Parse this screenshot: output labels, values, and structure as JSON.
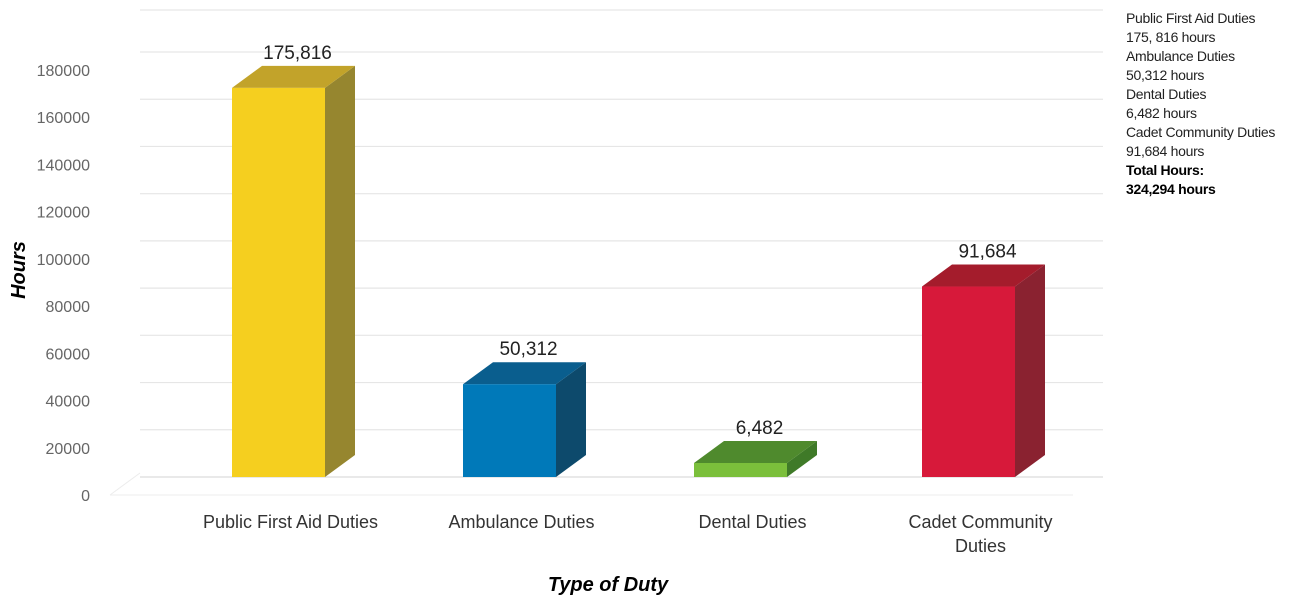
{
  "chart_data": {
    "type": "bar",
    "categories": [
      "Public First Aid Duties",
      "Ambulance Duties",
      "Dental Duties",
      "Cadet Community Duties"
    ],
    "category_lines": [
      [
        "Public First Aid Duties"
      ],
      [
        "Ambulance Duties"
      ],
      [
        "Dental Duties"
      ],
      [
        "Cadet Community",
        "Duties"
      ]
    ],
    "values": [
      175816,
      50312,
      6482,
      91684
    ],
    "data_labels": [
      "175,816",
      "50,312",
      "6,482",
      "91,684"
    ],
    "ylabel": "Hours",
    "xlabel": "Type of Duty",
    "ylim": [
      0,
      180000
    ],
    "yticks": [
      0,
      20000,
      40000,
      60000,
      80000,
      100000,
      120000,
      140000,
      160000,
      180000
    ],
    "grid": true,
    "style": "3d-column",
    "colors": [
      {
        "front": "#f5cf1f",
        "side": "#96862f",
        "top": "#c2a32a"
      },
      {
        "front": "#0079b9",
        "side": "#0d4a6c",
        "top": "#0a5e8e"
      },
      {
        "front": "#7bbf3b",
        "side": "#3f7a28",
        "top": "#4f8a2d"
      },
      {
        "front": "#d7193a",
        "side": "#8a2230",
        "top": "#a41c2c"
      }
    ],
    "legend_position": "right"
  },
  "legend": {
    "lines": [
      "Public First Aid Duties",
      "175, 816 hours",
      "Ambulance Duties",
      "50,312 hours",
      "Dental Duties",
      "6,482 hours",
      "Cadet Community Duties",
      "91,684 hours"
    ],
    "total_label": "Total Hours:",
    "total_value": "324,294 hours"
  }
}
